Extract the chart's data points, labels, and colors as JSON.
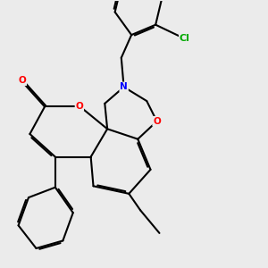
{
  "background_color": "#ebebeb",
  "atom_colors": {
    "O": "#ff0000",
    "N": "#0000ff",
    "Cl": "#00aa00",
    "C": "#000000"
  },
  "bond_color": "#000000",
  "bond_width": 1.5,
  "font_size_atom": 7.5
}
